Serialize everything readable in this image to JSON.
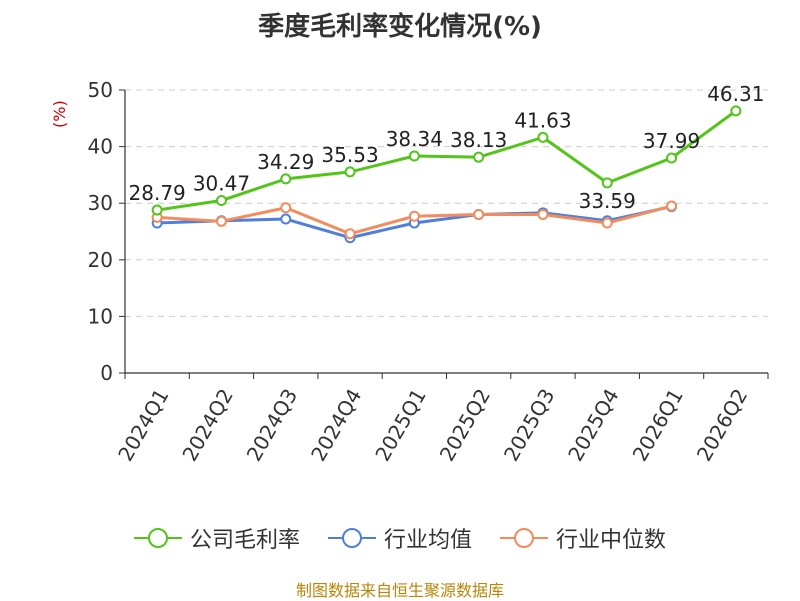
{
  "chart_data": {
    "type": "line",
    "title": "季度毛利率变化情况(%)",
    "ylabel": "(%)",
    "ylim": [
      0,
      50
    ],
    "yticks": [
      0,
      10,
      20,
      30,
      40,
      50
    ],
    "categories": [
      "2024Q1",
      "2024Q2",
      "2024Q3",
      "2024Q4",
      "2025Q1",
      "2025Q2",
      "2025Q3",
      "2025Q4",
      "2026Q1",
      "2026Q2"
    ],
    "series": [
      {
        "name": "公司毛利率",
        "color": "#52c41a",
        "labels": true,
        "values": [
          28.79,
          30.47,
          34.29,
          35.53,
          38.34,
          38.13,
          41.63,
          33.59,
          37.99,
          46.31
        ]
      },
      {
        "name": "行业均值",
        "color": "#4e7fdc",
        "labels": false,
        "values": [
          26.5,
          26.9,
          27.2,
          23.9,
          26.5,
          28.0,
          28.3,
          26.9,
          29.4,
          null
        ]
      },
      {
        "name": "行业中位数",
        "color": "#f28c5c",
        "labels": false,
        "values": [
          27.5,
          26.8,
          29.2,
          24.6,
          27.7,
          28.0,
          28.0,
          26.5,
          29.5,
          null
        ]
      }
    ],
    "grid": true,
    "legend_position": "bottom"
  },
  "source": "制图数据来自恒生聚源数据库"
}
